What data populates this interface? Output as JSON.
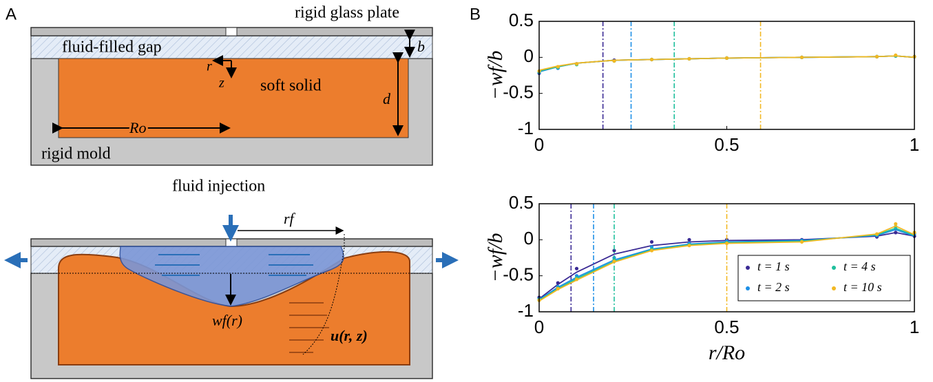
{
  "panel_labels": [
    "A",
    "B"
  ],
  "diagram_top": {
    "glass": "rigid glass plate",
    "gap": "fluid-filled gap",
    "solid": "soft solid",
    "mold": "rigid mold",
    "b": "b",
    "d": "d",
    "radius": "Ro",
    "r": "r",
    "z": "z"
  },
  "diagram_bottom": {
    "injection": "fluid injection",
    "front": "rf",
    "deflection": "wf(r)",
    "velocity": "u(r, z)"
  },
  "chart_data": [
    {
      "type": "line",
      "ylabel": "−wf/b",
      "x": [
        0,
        0.05,
        0.1,
        0.2,
        0.3,
        0.4,
        0.5,
        0.7,
        0.9,
        0.95,
        1
      ],
      "xlim": [
        0,
        1
      ],
      "xticks": [
        0,
        0.5,
        1
      ],
      "ylim": [
        -1,
        0.5
      ],
      "yticks": [
        -1,
        -0.5,
        0,
        0.5
      ],
      "series": [
        {
          "color": "#3a2a94",
          "front": 0.17,
          "values": [
            -0.22,
            -0.15,
            -0.09,
            -0.04,
            -0.03,
            -0.02,
            -0.01,
            0,
            0.01,
            0.02,
            0.01
          ],
          "fit": [
            -0.2,
            -0.13,
            -0.08,
            -0.04,
            -0.03,
            -0.02,
            -0.01,
            0,
            0.01,
            0.02,
            0
          ]
        },
        {
          "color": "#1d8fe6",
          "front": 0.245,
          "values": [
            -0.21,
            -0.15,
            -0.09,
            -0.05,
            -0.03,
            -0.02,
            -0.01,
            0,
            0.01,
            0.02,
            0.01
          ],
          "fit": [
            -0.2,
            -0.13,
            -0.08,
            -0.04,
            -0.03,
            -0.02,
            -0.01,
            0,
            0.01,
            0.02,
            0
          ]
        },
        {
          "color": "#1fbf9c",
          "front": 0.36,
          "values": [
            -0.2,
            -0.14,
            -0.1,
            -0.05,
            -0.03,
            -0.02,
            -0.01,
            0,
            0.01,
            0.02,
            0.01
          ],
          "fit": [
            -0.19,
            -0.13,
            -0.08,
            -0.04,
            -0.03,
            -0.02,
            -0.01,
            0,
            0.01,
            0.02,
            0
          ]
        },
        {
          "color": "#f2b823",
          "front": 0.59,
          "values": [
            -0.19,
            -0.13,
            -0.09,
            -0.05,
            -0.03,
            -0.02,
            -0.01,
            0,
            0.01,
            0.03,
            0.01
          ],
          "fit": [
            -0.18,
            -0.12,
            -0.08,
            -0.04,
            -0.03,
            -0.02,
            -0.01,
            0,
            0.01,
            0.02,
            0
          ]
        }
      ]
    },
    {
      "type": "line",
      "ylabel": "−wf/b",
      "xlabel": "r/Ro",
      "legend": "lower right",
      "x": [
        0,
        0.05,
        0.1,
        0.2,
        0.3,
        0.4,
        0.5,
        0.7,
        0.9,
        0.95,
        1
      ],
      "xlim": [
        0,
        1
      ],
      "xticks": [
        0,
        0.5,
        1
      ],
      "ylim": [
        -1,
        0.5
      ],
      "yticks": [
        -1,
        -0.5,
        0,
        0.5
      ],
      "series": [
        {
          "name": "t = 1 s",
          "color": "#3a2a94",
          "front": 0.085,
          "values": [
            -0.8,
            -0.6,
            -0.4,
            -0.15,
            -0.03,
            0,
            0,
            0,
            0.04,
            0.1,
            0.05
          ],
          "fit": [
            -0.82,
            -0.62,
            -0.45,
            -0.2,
            -0.08,
            -0.03,
            -0.01,
            0,
            0.05,
            0.1,
            0.05
          ]
        },
        {
          "name": "t = 2 s",
          "color": "#1d8fe6",
          "front": 0.145,
          "values": [
            -0.82,
            -0.65,
            -0.5,
            -0.25,
            -0.1,
            -0.05,
            -0.02,
            -0.01,
            0.06,
            0.15,
            0.08
          ],
          "fit": [
            -0.83,
            -0.66,
            -0.52,
            -0.28,
            -0.13,
            -0.06,
            -0.03,
            -0.01,
            0.06,
            0.14,
            0.05
          ]
        },
        {
          "name": "t = 4 s",
          "color": "#1fbf9c",
          "front": 0.2,
          "values": [
            -0.83,
            -0.67,
            -0.53,
            -0.28,
            -0.13,
            -0.07,
            -0.04,
            -0.02,
            0.07,
            0.18,
            0.1
          ],
          "fit": [
            -0.84,
            -0.68,
            -0.54,
            -0.3,
            -0.14,
            -0.07,
            -0.04,
            -0.02,
            0.07,
            0.16,
            0.06
          ]
        },
        {
          "name": "t = 10 s",
          "color": "#f2b823",
          "front": 0.5,
          "values": [
            -0.84,
            -0.68,
            -0.55,
            -0.3,
            -0.15,
            -0.08,
            -0.05,
            -0.03,
            0.08,
            0.22,
            0.1
          ],
          "fit": [
            -0.85,
            -0.69,
            -0.56,
            -0.31,
            -0.15,
            -0.08,
            -0.05,
            -0.03,
            0.08,
            0.19,
            0.07
          ]
        }
      ]
    }
  ]
}
